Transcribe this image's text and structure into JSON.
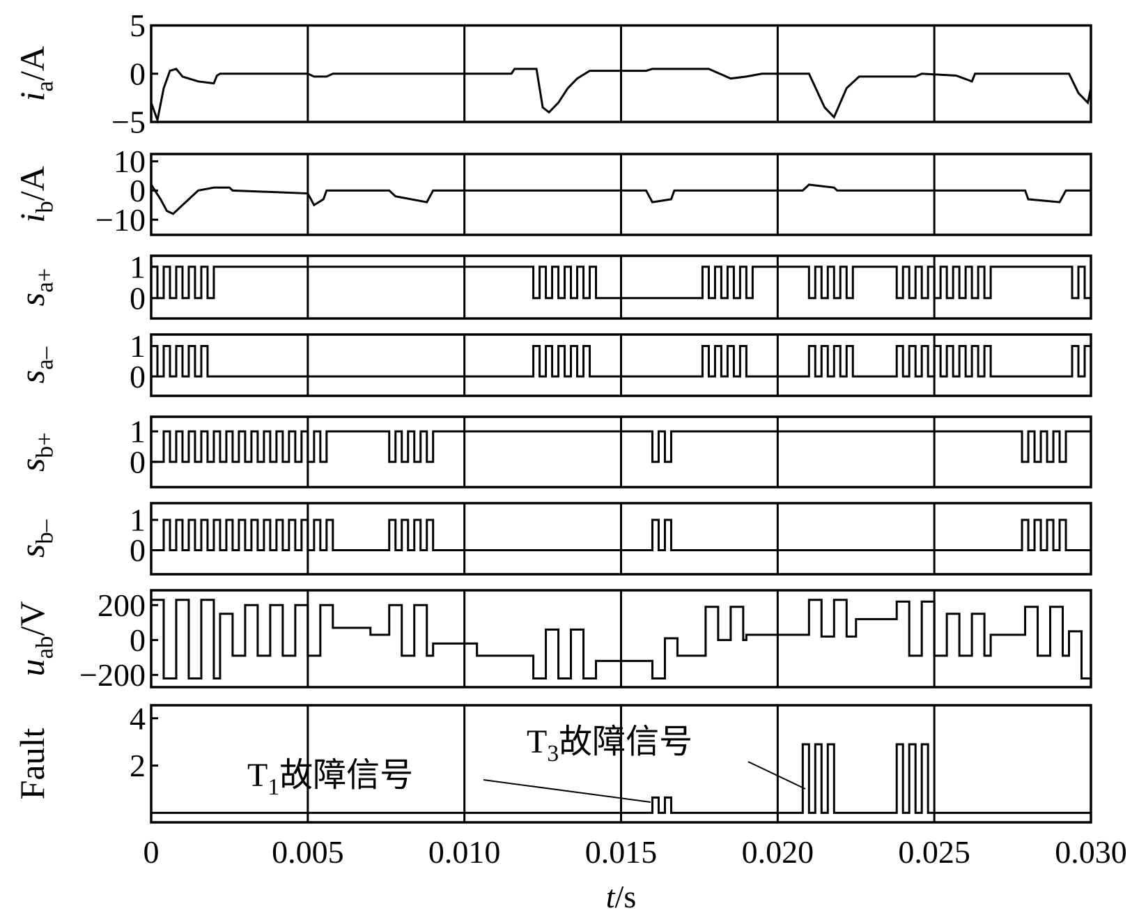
{
  "chart_data": [
    {
      "type": "line",
      "ylabel": [
        {
          "text": "i",
          "style": "italic"
        },
        {
          "text": "a",
          "style": "sub"
        },
        {
          "text": "/A"
        }
      ],
      "xlim": [
        0,
        0.03
      ],
      "xticks": [
        0,
        0.005,
        0.01,
        0.015,
        0.02,
        0.025,
        0.03
      ],
      "ylim": [
        -5,
        5
      ],
      "yticks": [
        5,
        0,
        {
          "value": -5,
          "label": "−5"
        }
      ],
      "grid": true,
      "color": "#000000",
      "x": [
        0,
        0.0002,
        0.0004,
        0.0006,
        0.0008,
        0.001,
        0.0015,
        0.002,
        0.0021,
        0.0022,
        0.005,
        0.0052,
        0.0056,
        0.0058,
        0.0115,
        0.0116,
        0.0123,
        0.0125,
        0.0127,
        0.013,
        0.0133,
        0.0136,
        0.014,
        0.0158,
        0.016,
        0.0178,
        0.0185,
        0.019,
        0.0195,
        0.021,
        0.0215,
        0.0218,
        0.0222,
        0.0226,
        0.0244,
        0.0246,
        0.0257,
        0.0262,
        0.0263,
        0.0293,
        0.0296,
        0.0299,
        0.03
      ],
      "values": [
        -3,
        -4.8,
        -1.5,
        0.3,
        0.5,
        -0.3,
        -0.8,
        -1,
        -0.2,
        0,
        0,
        -0.3,
        -0.3,
        0,
        0,
        0.5,
        0.5,
        -3.5,
        -4,
        -3,
        -1.5,
        -0.5,
        0.3,
        0.3,
        0.5,
        0.5,
        -0.5,
        -0.3,
        0,
        0,
        -3.5,
        -4.5,
        -1.5,
        -0.3,
        -0.3,
        0,
        -0.2,
        -0.8,
        0,
        0,
        -2,
        -3,
        -1.5
      ]
    },
    {
      "type": "line",
      "ylabel": [
        {
          "text": "i",
          "style": "italic"
        },
        {
          "text": "b",
          "style": "sub"
        },
        {
          "text": "/A"
        }
      ],
      "xlim": [
        0,
        0.03
      ],
      "xticks": [
        0,
        0.005,
        0.01,
        0.015,
        0.02,
        0.025,
        0.03
      ],
      "ylim": [
        -15.2,
        12.5
      ],
      "yticks": [
        10,
        0,
        {
          "value": -10,
          "label": "−10"
        }
      ],
      "grid": true,
      "color": "#000000",
      "x": [
        0,
        0.0003,
        0.0005,
        0.0007,
        0.001,
        0.0013,
        0.0015,
        0.002,
        0.0025,
        0.0026,
        0.005,
        0.0052,
        0.0055,
        0.0056,
        0.0076,
        0.0078,
        0.0088,
        0.009,
        0.0158,
        0.016,
        0.0166,
        0.0167,
        0.0208,
        0.021,
        0.0218,
        0.0219,
        0.0279,
        0.028,
        0.029,
        0.0292,
        0.03
      ],
      "values": [
        2,
        -3,
        -7,
        -8,
        -5,
        -2,
        0,
        1,
        1,
        0,
        -1,
        -5,
        -3,
        0,
        0,
        -2,
        -4,
        0,
        0,
        -4,
        -3,
        0,
        0,
        2,
        1,
        0,
        0,
        -3,
        -4,
        0,
        0
      ]
    },
    {
      "type": "step",
      "ylabel": [
        {
          "text": "s",
          "style": "italic"
        },
        {
          "text": "a+",
          "style": "sub"
        }
      ],
      "xlim": [
        0,
        0.03
      ],
      "xticks": [
        0,
        0.005,
        0.01,
        0.015,
        0.02,
        0.025,
        0.03
      ],
      "ylim": [
        -0.65,
        1.35
      ],
      "yticks": [
        1,
        0
      ],
      "grid": true,
      "color": "#000000",
      "x": [
        0,
        0.0002,
        0.0004,
        0.0006,
        0.0008,
        0.001,
        0.0012,
        0.0014,
        0.0016,
        0.0018,
        0.002,
        0.0122,
        0.0124,
        0.0126,
        0.0128,
        0.013,
        0.0132,
        0.0134,
        0.0136,
        0.0138,
        0.014,
        0.0142,
        0.0176,
        0.0178,
        0.018,
        0.0182,
        0.0184,
        0.0186,
        0.0188,
        0.019,
        0.0192,
        0.021,
        0.0212,
        0.0214,
        0.0216,
        0.0218,
        0.022,
        0.0222,
        0.0224,
        0.0238,
        0.024,
        0.0242,
        0.0244,
        0.0246,
        0.0248,
        0.025,
        0.0252,
        0.0254,
        0.0256,
        0.0258,
        0.026,
        0.0262,
        0.0264,
        0.0266,
        0.0268,
        0.0294,
        0.0296,
        0.0298,
        0.03
      ],
      "values": [
        1,
        0,
        1,
        0,
        1,
        0,
        1,
        0,
        1,
        0,
        1,
        0,
        1,
        0,
        1,
        0,
        1,
        0,
        1,
        0,
        1,
        0,
        1,
        0,
        1,
        0,
        1,
        0,
        1,
        0,
        1,
        0,
        1,
        0,
        1,
        0,
        1,
        0,
        1,
        0,
        1,
        0,
        1,
        0,
        1,
        0,
        1,
        0,
        1,
        0,
        1,
        0,
        1,
        0,
        1,
        0,
        1,
        0,
        1
      ]
    },
    {
      "type": "step",
      "ylabel": [
        {
          "text": "s",
          "style": "italic"
        },
        {
          "text": "a–",
          "style": "sub"
        }
      ],
      "xlim": [
        0,
        0.03
      ],
      "xticks": [
        0,
        0.005,
        0.01,
        0.015,
        0.02,
        0.025,
        0.03
      ],
      "ylim": [
        -0.64,
        1.38
      ],
      "yticks": [
        1,
        0
      ],
      "grid": true,
      "color": "#000000",
      "x": [
        0,
        0.0002,
        0.0004,
        0.0006,
        0.0008,
        0.001,
        0.0012,
        0.0014,
        0.0016,
        0.0018,
        0.002,
        0.0122,
        0.0124,
        0.0126,
        0.0128,
        0.013,
        0.0132,
        0.0134,
        0.0136,
        0.0138,
        0.014,
        0.0142,
        0.0176,
        0.0178,
        0.018,
        0.0182,
        0.0184,
        0.0186,
        0.0188,
        0.019,
        0.0192,
        0.021,
        0.0212,
        0.0214,
        0.0216,
        0.0218,
        0.022,
        0.0222,
        0.0224,
        0.0238,
        0.024,
        0.0242,
        0.0244,
        0.0246,
        0.0248,
        0.025,
        0.0252,
        0.0254,
        0.0256,
        0.0258,
        0.026,
        0.0262,
        0.0264,
        0.0266,
        0.0268,
        0.0294,
        0.0296,
        0.0298,
        0.03
      ],
      "values": [
        1,
        0,
        1,
        0,
        1,
        0,
        1,
        0,
        1,
        0,
        0,
        1,
        0,
        1,
        0,
        1,
        0,
        1,
        0,
        1,
        0,
        0,
        1,
        0,
        1,
        0,
        1,
        0,
        1,
        0,
        0,
        1,
        0,
        1,
        0,
        1,
        0,
        1,
        0,
        1,
        0,
        1,
        0,
        1,
        0,
        1,
        0,
        1,
        0,
        1,
        0,
        1,
        0,
        1,
        0,
        1,
        0,
        1,
        0
      ]
    },
    {
      "type": "step",
      "ylabel": [
        {
          "text": "s",
          "style": "italic"
        },
        {
          "text": "b+",
          "style": "sub"
        }
      ],
      "xlim": [
        0,
        0.03
      ],
      "xticks": [
        0,
        0.005,
        0.01,
        0.015,
        0.02,
        0.025,
        0.03
      ],
      "ylim": [
        -0.83,
        1.48
      ],
      "yticks": [
        1,
        0
      ],
      "grid": true,
      "color": "#000000",
      "x": [
        0,
        0.0004,
        0.0006,
        0.0008,
        0.001,
        0.0012,
        0.0014,
        0.0016,
        0.0018,
        0.002,
        0.0022,
        0.0024,
        0.0026,
        0.0028,
        0.003,
        0.0032,
        0.0034,
        0.0036,
        0.0038,
        0.004,
        0.0042,
        0.0044,
        0.0046,
        0.0048,
        0.005,
        0.0052,
        0.0054,
        0.0056,
        0.0058,
        0.0076,
        0.0078,
        0.008,
        0.0082,
        0.0084,
        0.0086,
        0.0088,
        0.009,
        0.016,
        0.0162,
        0.0164,
        0.0166,
        0.0168,
        0.0278,
        0.028,
        0.0282,
        0.0284,
        0.0286,
        0.0288,
        0.029,
        0.0292,
        0.03
      ],
      "values": [
        0,
        1,
        0,
        1,
        0,
        1,
        0,
        1,
        0,
        1,
        0,
        1,
        0,
        1,
        0,
        1,
        0,
        1,
        0,
        1,
        0,
        1,
        0,
        1,
        0,
        1,
        0,
        1,
        1,
        0,
        1,
        0,
        1,
        0,
        1,
        0,
        1,
        0,
        1,
        0,
        1,
        1,
        0,
        1,
        0,
        1,
        0,
        1,
        0,
        1,
        1
      ]
    },
    {
      "type": "step",
      "ylabel": [
        {
          "text": "s",
          "style": "italic"
        },
        {
          "text": "b–",
          "style": "sub"
        }
      ],
      "xlim": [
        0,
        0.03
      ],
      "xticks": [
        0,
        0.005,
        0.01,
        0.015,
        0.02,
        0.025,
        0.03
      ],
      "ylim": [
        -0.79,
        1.55
      ],
      "yticks": [
        1,
        0
      ],
      "grid": true,
      "color": "#000000",
      "x": [
        0,
        0.0004,
        0.0006,
        0.0008,
        0.001,
        0.0012,
        0.0014,
        0.0016,
        0.0018,
        0.002,
        0.0022,
        0.0024,
        0.0026,
        0.0028,
        0.003,
        0.0032,
        0.0034,
        0.0036,
        0.0038,
        0.004,
        0.0042,
        0.0044,
        0.0046,
        0.0048,
        0.005,
        0.0052,
        0.0054,
        0.0056,
        0.0058,
        0.0076,
        0.0078,
        0.008,
        0.0082,
        0.0084,
        0.0086,
        0.0088,
        0.009,
        0.016,
        0.0162,
        0.0164,
        0.0166,
        0.0168,
        0.0278,
        0.028,
        0.0282,
        0.0284,
        0.0286,
        0.0288,
        0.029,
        0.0292,
        0.03
      ],
      "values": [
        0,
        1,
        0,
        1,
        0,
        1,
        0,
        1,
        0,
        1,
        0,
        1,
        0,
        1,
        0,
        1,
        0,
        1,
        0,
        1,
        0,
        1,
        0,
        1,
        0,
        1,
        0,
        1,
        0,
        1,
        0,
        1,
        0,
        1,
        0,
        1,
        0,
        1,
        0,
        1,
        0,
        0,
        1,
        0,
        1,
        0,
        1,
        0,
        1,
        0,
        0
      ]
    },
    {
      "type": "step",
      "ylabel": [
        {
          "text": "u",
          "style": "italic"
        },
        {
          "text": "ab",
          "style": "sub"
        },
        {
          "text": "/V"
        }
      ],
      "xlim": [
        0,
        0.03
      ],
      "xticks": [
        0,
        0.005,
        0.01,
        0.015,
        0.02,
        0.025,
        0.03
      ],
      "ylim": [
        -270,
        285
      ],
      "yticks": [
        200,
        0,
        {
          "value": -200,
          "label": "−200"
        }
      ],
      "grid": true,
      "color": "#000000",
      "x": [
        0,
        0.0004,
        0.0008,
        0.0012,
        0.0016,
        0.002,
        0.0022,
        0.0026,
        0.003,
        0.0034,
        0.0038,
        0.0042,
        0.0046,
        0.005,
        0.0054,
        0.0058,
        0.007,
        0.0076,
        0.008,
        0.0084,
        0.0088,
        0.009,
        0.0104,
        0.0122,
        0.0126,
        0.013,
        0.0134,
        0.0138,
        0.0142,
        0.016,
        0.0164,
        0.0168,
        0.0177,
        0.0181,
        0.0185,
        0.0189,
        0.019,
        0.021,
        0.0214,
        0.0218,
        0.0222,
        0.0225,
        0.0238,
        0.0242,
        0.0246,
        0.025,
        0.0254,
        0.0258,
        0.0262,
        0.0266,
        0.0268,
        0.0279,
        0.0283,
        0.0287,
        0.0291,
        0.0293,
        0.0297,
        0.03
      ],
      "values": [
        230,
        -220,
        230,
        -220,
        230,
        -220,
        150,
        -90,
        200,
        -90,
        200,
        -90,
        200,
        -90,
        200,
        70,
        30,
        200,
        -90,
        200,
        -90,
        -20,
        -90,
        -220,
        60,
        -220,
        60,
        -220,
        -120,
        -220,
        10,
        -90,
        190,
        0,
        190,
        0,
        30,
        230,
        20,
        230,
        20,
        120,
        220,
        -90,
        220,
        -90,
        150,
        -90,
        150,
        -90,
        30,
        190,
        -90,
        190,
        -90,
        50,
        -220,
        50
      ]
    },
    {
      "type": "step",
      "ylabel": [
        {
          "text": "Fault"
        }
      ],
      "xlim": [
        0,
        0.03
      ],
      "ylim": [
        -0.4,
        4.55
      ],
      "yticks": [
        4,
        2
      ],
      "grid": true,
      "color": "#000000",
      "xticks": [
        0,
        0.005,
        {
          "value": 0.01,
          "label": "0.010"
        },
        0.015,
        {
          "value": 0.02,
          "label": "0.020"
        },
        0.025,
        {
          "value": 0.03,
          "label": "0.030"
        }
      ],
      "xlabel": [
        {
          "text": "t",
          "style": "italic"
        },
        {
          "text": "/s"
        }
      ],
      "annotations": [
        [
          {
            "text": "T"
          },
          {
            "text": "1",
            "style": "sub"
          },
          {
            "text": "故障信号"
          }
        ],
        [
          {
            "text": "T"
          },
          {
            "text": "3",
            "style": "sub"
          },
          {
            "text": "故障信号"
          }
        ]
      ],
      "x": [
        0,
        0.016,
        0.0162,
        0.0164,
        0.0166,
        0.0168,
        0.0208,
        0.021,
        0.0212,
        0.0214,
        0.0216,
        0.0218,
        0.0238,
        0.024,
        0.0242,
        0.0244,
        0.0246,
        0.0248,
        0.03
      ],
      "values": [
        0,
        0.65,
        0,
        0.65,
        0,
        0,
        2.9,
        0,
        2.9,
        0,
        2.9,
        0,
        2.9,
        0,
        2.9,
        0,
        2.9,
        0,
        0
      ]
    }
  ]
}
